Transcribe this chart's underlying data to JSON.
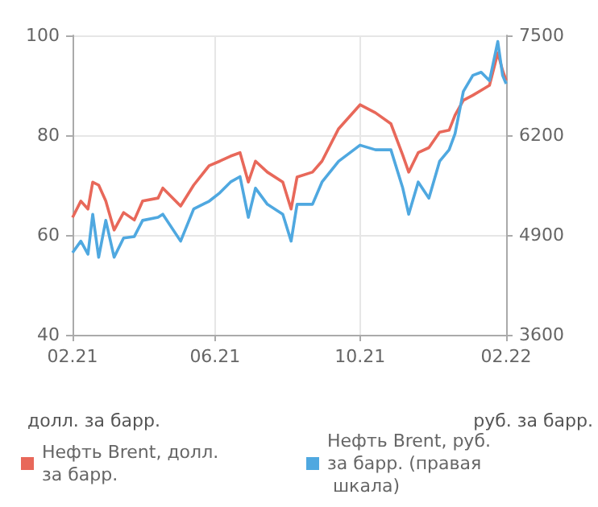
{
  "chart_data": {
    "type": "line",
    "x": [
      "2021-02-01",
      "2021-02-08",
      "2021-02-14",
      "2021-02-18",
      "2021-02-23",
      "2021-03-01",
      "2021-03-08",
      "2021-03-16",
      "2021-03-25",
      "2021-04-01",
      "2021-04-14",
      "2021-04-18",
      "2021-05-03",
      "2021-05-14",
      "2021-05-27",
      "2021-06-05",
      "2021-06-14",
      "2021-06-22",
      "2021-06-29",
      "2021-07-05",
      "2021-07-15",
      "2021-07-28",
      "2021-08-04",
      "2021-08-09",
      "2021-08-22",
      "2021-08-30",
      "2021-09-13",
      "2021-10-01",
      "2021-10-14",
      "2021-10-27",
      "2021-11-06",
      "2021-11-11",
      "2021-11-19",
      "2021-11-28",
      "2021-12-07",
      "2021-12-15",
      "2021-12-20",
      "2021-12-27",
      "2022-01-04",
      "2022-01-11",
      "2022-01-18",
      "2022-01-25",
      "2022-01-29",
      "2022-02-01"
    ],
    "series": [
      {
        "name": "Нефть Brent, долл. за барр.",
        "color": "#e8685a",
        "values": [
          63.5,
          66.8,
          65.2,
          70.6,
          70,
          66.8,
          61,
          64.5,
          63,
          66.8,
          67.4,
          69.4,
          65.8,
          70,
          73.9,
          74.8,
          75.8,
          76.5,
          70.6,
          74.8,
          72.6,
          70.6,
          65.2,
          71.6,
          72.6,
          74.8,
          81.3,
          86.1,
          84.5,
          82.3,
          76,
          72.6,
          76.5,
          77.5,
          80.6,
          81,
          84,
          87,
          88,
          89,
          90,
          96.5,
          93,
          91
        ]
      },
      {
        "name": "Нефть Brent, руб. за барр. (правая шкала)",
        "color": "#4fa8e0",
        "axis": "y2",
        "values": [
          4670,
          4820,
          4650,
          5170,
          4610,
          5090,
          4610,
          4860,
          4880,
          5090,
          5130,
          5170,
          4820,
          5240,
          5340,
          5450,
          5590,
          5660,
          5130,
          5510,
          5300,
          5170,
          4820,
          5300,
          5300,
          5590,
          5860,
          6070,
          6010,
          6010,
          5510,
          5170,
          5590,
          5380,
          5860,
          6010,
          6220,
          6770,
          6980,
          7020,
          6910,
          7420,
          6980,
          6870
        ]
      }
    ],
    "xlim": [
      "2021-02-01",
      "2022-02-01"
    ],
    "xticks": [
      {
        "value": "2021-02-01",
        "label": "02.21"
      },
      {
        "value": "2021-06-01",
        "label": "06.21"
      },
      {
        "value": "2021-10-01",
        "label": "10.21"
      },
      {
        "value": "2022-02-01",
        "label": "02.22"
      }
    ],
    "ylim": [
      40,
      100
    ],
    "yticks": [
      40,
      60,
      80,
      100
    ],
    "y2lim": [
      3600,
      7500
    ],
    "y2ticks": [
      3600,
      4900,
      6200,
      7500
    ],
    "ylabel": "долл. за барр.",
    "y2label": "руб. за барр.",
    "grid": true,
    "legend": "bottom",
    "marker": "none",
    "line_style": "solid"
  }
}
